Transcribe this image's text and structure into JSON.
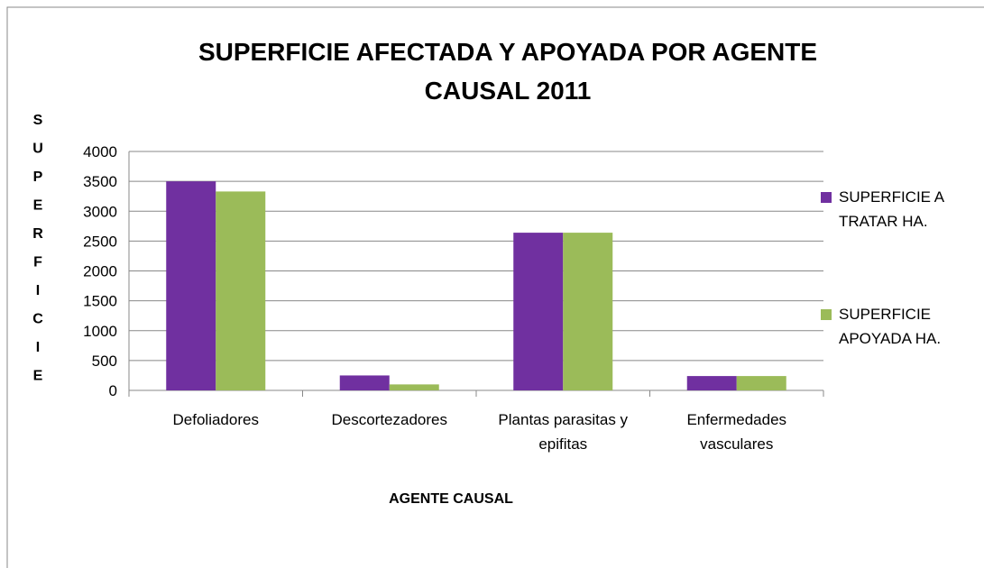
{
  "chart_data": {
    "type": "bar",
    "title": "SUPERFICIE AFECTADA Y APOYADA POR AGENTE CAUSAL 2011",
    "y_label": "SUPERFICIE",
    "x_label": "AGENTE CAUSAL",
    "categories": [
      "Defoliadores",
      "Descortezadores",
      "Plantas parasitas y epifitas",
      "Enfermedades vasculares"
    ],
    "series": [
      {
        "name": "SUPERFICIE A TRATAR HA.",
        "color": "#7030a0",
        "values": [
          3500,
          250,
          2640,
          240
        ]
      },
      {
        "name": "SUPERFICIE APOYADA HA.",
        "color": "#9bbb59",
        "values": [
          3330,
          100,
          2640,
          240
        ]
      }
    ],
    "ylim": [
      0,
      4000
    ],
    "yticks": [
      0,
      500,
      1000,
      1500,
      2000,
      2500,
      3000,
      3500,
      4000
    ],
    "grid": true,
    "legend": "right"
  }
}
